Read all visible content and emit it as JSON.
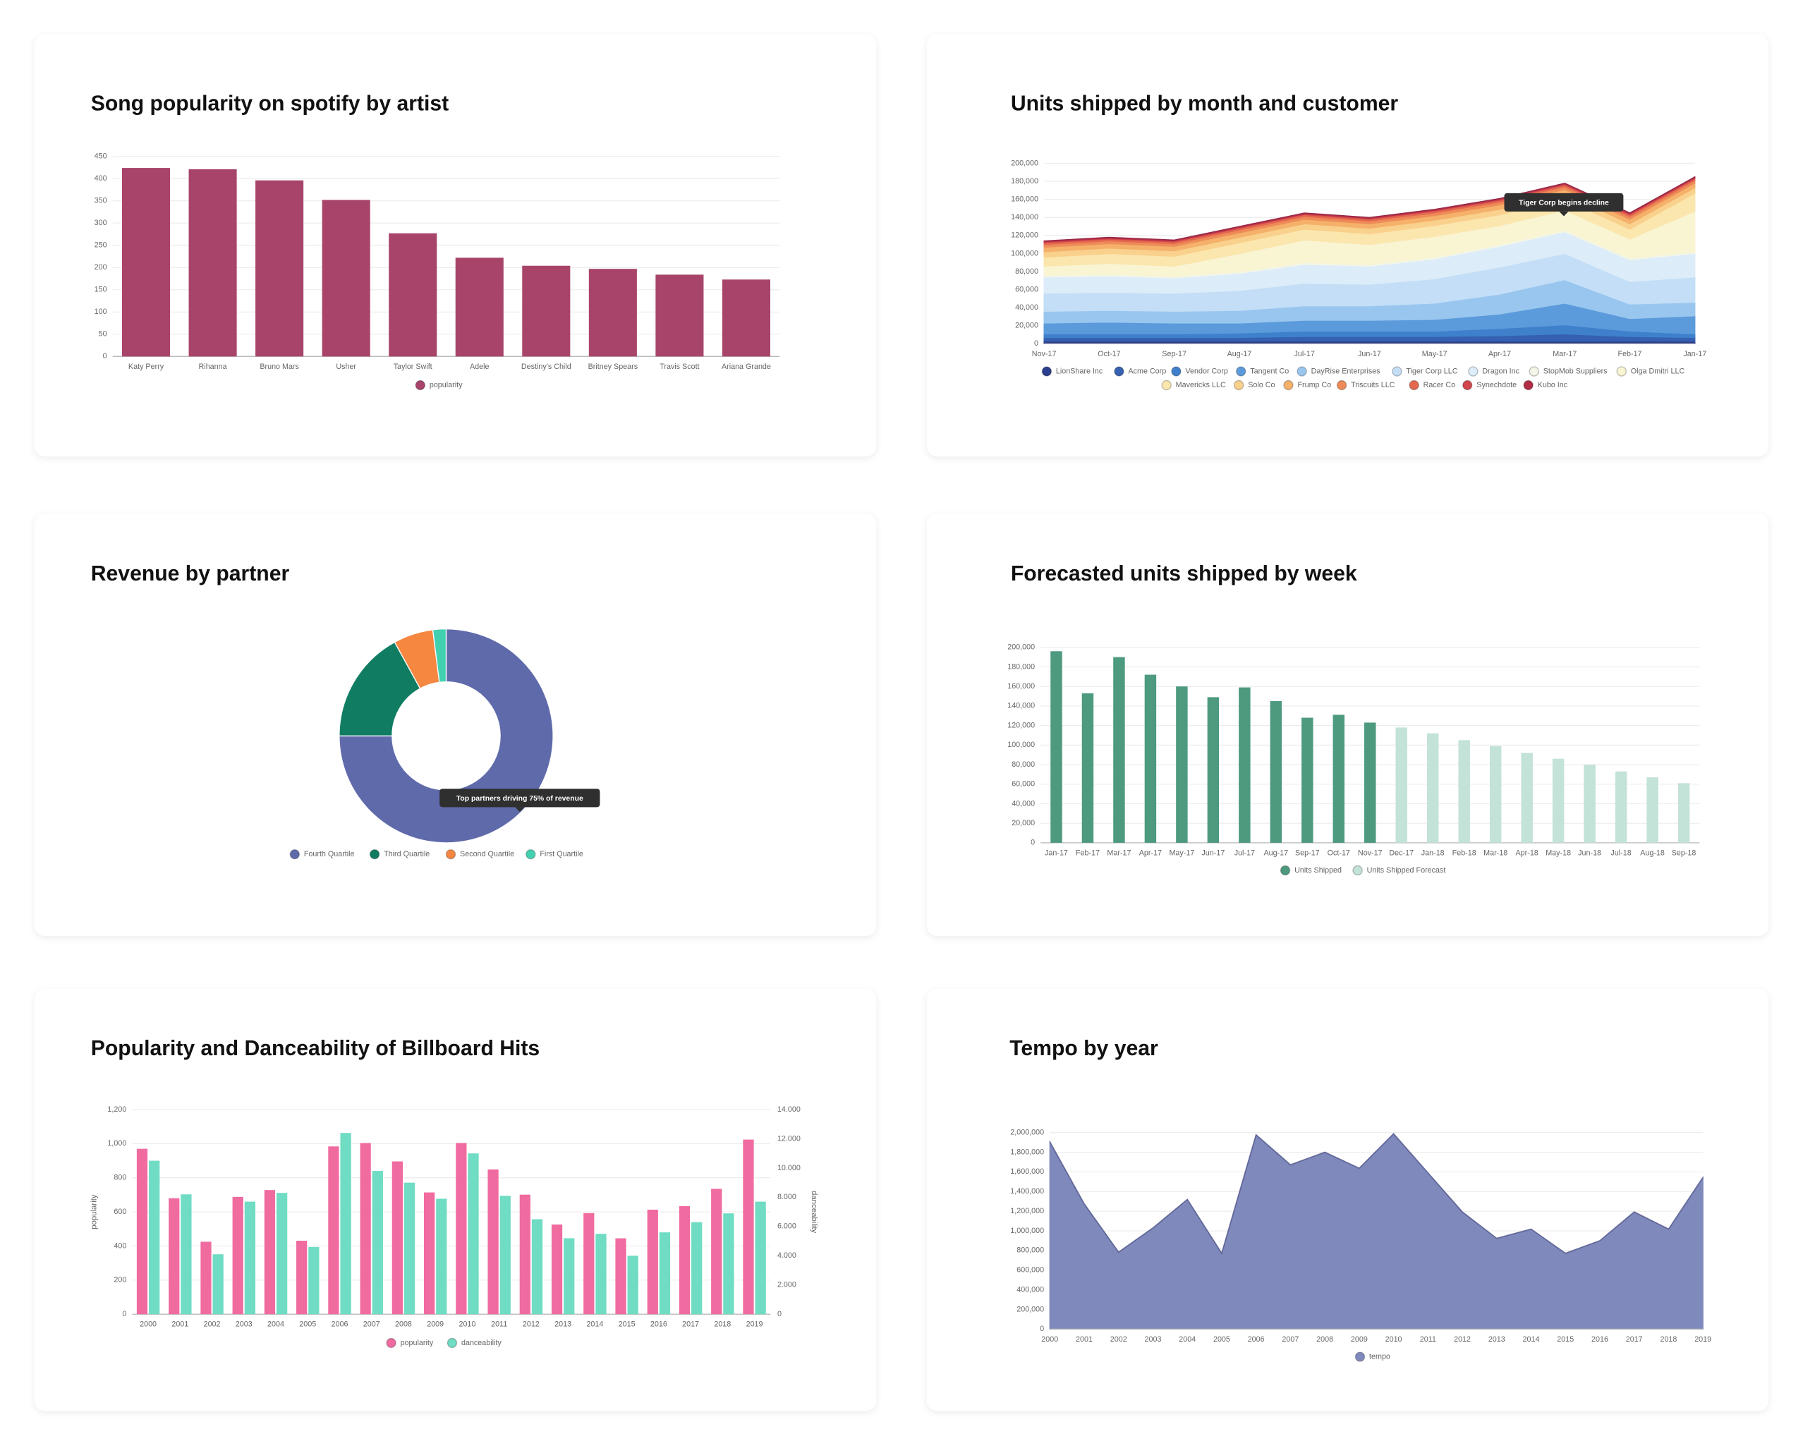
{
  "chart_data": [
    {
      "type": "bar",
      "title": "Song popularity on spotify by artist",
      "categories": [
        "Katy Perry",
        "Rihanna",
        "Bruno Mars",
        "Usher",
        "Taylor Swift",
        "Adele",
        "Destiny's Child",
        "Britney Spears",
        "Travis Scott",
        "Ariana Grande"
      ],
      "series": [
        {
          "name": "popularity",
          "color": "#a8446a",
          "values": [
            424,
            421,
            396,
            352,
            277,
            222,
            204,
            197,
            184,
            173
          ]
        }
      ],
      "ylim": [
        0,
        450
      ],
      "yticks": [
        0,
        50,
        100,
        150,
        200,
        250,
        300,
        350,
        400,
        450
      ],
      "grid": true
    },
    {
      "type": "area",
      "stacked": true,
      "title": "Units shipped by month and customer",
      "categories": [
        "Nov-17",
        "Oct-17",
        "Sep-17",
        "Aug-17",
        "Jul-17",
        "Jun-17",
        "May-17",
        "Apr-17",
        "Mar-17",
        "Feb-17",
        "Jan-17"
      ],
      "series": [
        {
          "name": "LionShare Inc",
          "color": "#2b3f8e",
          "values": [
            3000,
            3000,
            3000,
            3000,
            3000,
            3000,
            3000,
            3000,
            3000,
            3000,
            3000
          ]
        },
        {
          "name": "Acme Corp",
          "color": "#3561b0",
          "values": [
            4000,
            4000,
            4000,
            4000,
            5000,
            5000,
            5000,
            6000,
            8000,
            5000,
            4000
          ]
        },
        {
          "name": "Vendor Corp",
          "color": "#3f80cc",
          "values": [
            4000,
            4000,
            4000,
            5000,
            6000,
            6000,
            6000,
            8000,
            10000,
            6000,
            4000
          ]
        },
        {
          "name": "Tangent Co",
          "color": "#5b9bdb",
          "values": [
            12000,
            13000,
            12000,
            11000,
            12000,
            12000,
            13000,
            16000,
            24000,
            14000,
            20000
          ]
        },
        {
          "name": "DayRise Enterprises",
          "color": "#99c6ef",
          "values": [
            13000,
            13000,
            13000,
            14000,
            16000,
            16000,
            18000,
            22000,
            26000,
            16000,
            15000
          ]
        },
        {
          "name": "Tiger Corp LLC",
          "color": "#c3def6",
          "values": [
            20000,
            20000,
            20000,
            22000,
            25000,
            24000,
            27000,
            30000,
            29000,
            25000,
            28000
          ]
        },
        {
          "name": "Dragon Inc",
          "color": "#dcecf9",
          "values": [
            18000,
            18000,
            17000,
            19000,
            21000,
            20000,
            22000,
            23000,
            24000,
            24000,
            26000
          ]
        },
        {
          "name": "StopMob Suppliers",
          "color": "#f3f5e6",
          "values": [
            2000,
            2000,
            2000,
            2000,
            2000,
            2000,
            2000,
            2000,
            2000,
            2000,
            2000
          ]
        },
        {
          "name": "Olga Dmitri LLC",
          "color": "#f9f4d2",
          "values": [
            10000,
            12000,
            11000,
            20000,
            25000,
            22000,
            23000,
            21000,
            22000,
            21000,
            45000
          ]
        },
        {
          "name": "Mavericks LLC",
          "color": "#fbe6ad",
          "values": [
            10000,
            11000,
            11000,
            12000,
            12000,
            12000,
            12000,
            12000,
            12000,
            11000,
            20000
          ]
        },
        {
          "name": "Solo Co",
          "color": "#f9d08c",
          "values": [
            6000,
            6000,
            6000,
            6000,
            6000,
            6000,
            6000,
            6000,
            6000,
            6000,
            6000
          ]
        },
        {
          "name": "Frump Co",
          "color": "#f5b06a",
          "values": [
            5000,
            5000,
            5000,
            5000,
            5000,
            5000,
            5000,
            5000,
            5000,
            5000,
            5000
          ]
        },
        {
          "name": "Triscuits LLC",
          "color": "#ee8b58",
          "values": [
            3000,
            3000,
            3000,
            3000,
            3000,
            3000,
            3000,
            3000,
            3000,
            3000,
            3000
          ]
        },
        {
          "name": "Racer Co",
          "color": "#e4684f",
          "values": [
            2000,
            2000,
            2000,
            2000,
            2000,
            2000,
            2000,
            2000,
            2000,
            2000,
            2000
          ]
        },
        {
          "name": "Synechdote",
          "color": "#d2474b",
          "values": [
            1000,
            1000,
            1000,
            1000,
            1000,
            1000,
            1000,
            1000,
            1000,
            1000,
            1000
          ]
        },
        {
          "name": "Kubo Inc",
          "color": "#b12c45",
          "values": [
            1000,
            1000,
            1000,
            1000,
            1000,
            1000,
            1000,
            1000,
            1000,
            1000,
            1000
          ]
        }
      ],
      "ylim": [
        0,
        200000
      ],
      "yticks": [
        0,
        {
          "value": 20000,
          "label": "20,000"
        },
        {
          "value": 40000,
          "label": "40,000"
        },
        {
          "value": 60000,
          "label": "60,000"
        },
        {
          "value": 80000,
          "label": "80,000"
        },
        {
          "value": 100000,
          "label": "100,000"
        },
        {
          "value": 120000,
          "label": "120,000"
        },
        {
          "value": 140000,
          "label": "140,000"
        },
        {
          "value": 160000,
          "label": "160,000"
        },
        {
          "value": 180000,
          "label": "180,000"
        },
        {
          "value": 200000,
          "label": "200,000"
        }
      ],
      "grid": true,
      "annotation": "Tiger Corp begins decline"
    },
    {
      "type": "pie",
      "title": "Revenue by partner",
      "donut": true,
      "categories": [
        "Fourth Quartile",
        "Third Quartile",
        "Second Quartile",
        "First Quartile"
      ],
      "values": [
        75,
        17,
        6,
        2
      ],
      "colors": [
        "#5f6aab",
        "#107d63",
        "#f58741",
        "#41d1b1"
      ],
      "annotation": "Top partners driving 75% of revenue"
    },
    {
      "type": "bar",
      "title": "Forecasted units shipped by week",
      "categories": [
        "Jan-17",
        "Feb-17",
        "Mar-17",
        "Apr-17",
        "May-17",
        "Jun-17",
        "Jul-17",
        "Aug-17",
        "Sep-17",
        "Oct-17",
        "Nov-17",
        "Dec-17",
        "Jan-18",
        "Feb-18",
        "Mar-18",
        "Apr-18",
        "May-18",
        "Jun-18",
        "Jul-18",
        "Aug-18",
        "Sep-18"
      ],
      "series": [
        {
          "name": "Units Shipped",
          "color": "#4d9a7e",
          "values": [
            196000,
            153000,
            190000,
            172000,
            160000,
            149000,
            159000,
            145000,
            128000,
            131000,
            123000,
            null,
            null,
            null,
            null,
            null,
            null,
            null,
            null,
            null,
            null
          ]
        },
        {
          "name": "Units Shipped Forecast",
          "color": "#c3e2d8",
          "values": [
            null,
            null,
            null,
            null,
            null,
            null,
            null,
            null,
            null,
            null,
            null,
            118000,
            112000,
            105000,
            99000,
            92000,
            86000,
            80000,
            73000,
            67000,
            61000
          ]
        }
      ],
      "ylim": [
        0,
        200000
      ],
      "yticks": [
        0,
        {
          "value": 20000,
          "label": "20,000"
        },
        {
          "value": 40000,
          "label": "40,000"
        },
        {
          "value": 60000,
          "label": "60,000"
        },
        {
          "value": 80000,
          "label": "80,000"
        },
        {
          "value": 100000,
          "label": "100,000"
        },
        {
          "value": 120000,
          "label": "120,000"
        },
        {
          "value": 140000,
          "label": "140,000"
        },
        {
          "value": 160000,
          "label": "160,000"
        },
        {
          "value": 180000,
          "label": "180,000"
        },
        {
          "value": 200000,
          "label": "200,000"
        }
      ],
      "grid": true
    },
    {
      "type": "bar",
      "title": "Popularity and Danceability of Billboard Hits",
      "categories": [
        "2000",
        "2001",
        "2002",
        "2003",
        "2004",
        "2005",
        "2006",
        "2007",
        "2008",
        "2009",
        "2010",
        "2011",
        "2012",
        "2013",
        "2014",
        "2015",
        "2016",
        "2017",
        "2018",
        "2019"
      ],
      "series": [
        {
          "name": "popularity",
          "color": "#f06ba0",
          "values": [
            970,
            680,
            425,
            688,
            728,
            431,
            984,
            1004,
            896,
            714,
            1004,
            849,
            701,
            526,
            593,
            445,
            613,
            634,
            735,
            1024
          ]
        },
        {
          "name": "danceability",
          "color": "#6fdcc3",
          "axis": "y2",
          "values": [
            10.5,
            8.2,
            4.1,
            7.7,
            8.3,
            4.6,
            12.4,
            9.8,
            9.0,
            7.9,
            11.0,
            8.1,
            6.5,
            5.2,
            5.5,
            4.0,
            5.6,
            6.3,
            6.9,
            7.7
          ]
        }
      ],
      "ylabel": "popularity",
      "y2label": "danceability",
      "ylim": [
        0,
        1200
      ],
      "yticks": [
        0,
        200,
        400,
        600,
        800,
        {
          "value": 1000,
          "label": "1,000"
        },
        {
          "value": 1200,
          "label": "1,200"
        }
      ],
      "y2lim": [
        0,
        14
      ],
      "y2ticks": [
        0,
        {
          "value": 2,
          "label": "2.000"
        },
        {
          "value": 4,
          "label": "4.000"
        },
        {
          "value": 6,
          "label": "6.000"
        },
        {
          "value": 8,
          "label": "8.000"
        },
        {
          "value": 10,
          "label": "10.000"
        },
        {
          "value": 12,
          "label": "12.000"
        },
        {
          "value": 14,
          "label": "14.000"
        }
      ],
      "grid": true
    },
    {
      "type": "area",
      "title": "Tempo by year",
      "categories": [
        "2000",
        "2001",
        "2002",
        "2003",
        "2004",
        "2005",
        "2006",
        "2007",
        "2008",
        "2009",
        "2010",
        "2011",
        "2012",
        "2013",
        "2014",
        "2015",
        "2016",
        "2017",
        "2018",
        "2019"
      ],
      "series": [
        {
          "name": "tempo",
          "color": "#7f89bc",
          "values": [
            1906000,
            1275000,
            784000,
            1030000,
            1320000,
            772000,
            1977000,
            1672000,
            1800000,
            1637000,
            1988000,
            1590000,
            1193000,
            924000,
            1018000,
            772000,
            900000,
            1193000,
            1018000,
            1544000
          ]
        }
      ],
      "ylim": [
        0,
        2000000
      ],
      "yticks": [
        0,
        {
          "value": 200000,
          "label": "200,000"
        },
        {
          "value": 400000,
          "label": "400,000"
        },
        {
          "value": 600000,
          "label": "600,000"
        },
        {
          "value": 800000,
          "label": "800,000"
        },
        {
          "value": 1000000,
          "label": "1,000,000"
        },
        {
          "value": 1200000,
          "label": "1,200,000"
        },
        {
          "value": 1400000,
          "label": "1,400,000"
        },
        {
          "value": 1600000,
          "label": "1,600,000"
        },
        {
          "value": 1800000,
          "label": "1,800,000"
        },
        {
          "value": 2000000,
          "label": "2,000,000"
        }
      ],
      "grid": true
    }
  ]
}
